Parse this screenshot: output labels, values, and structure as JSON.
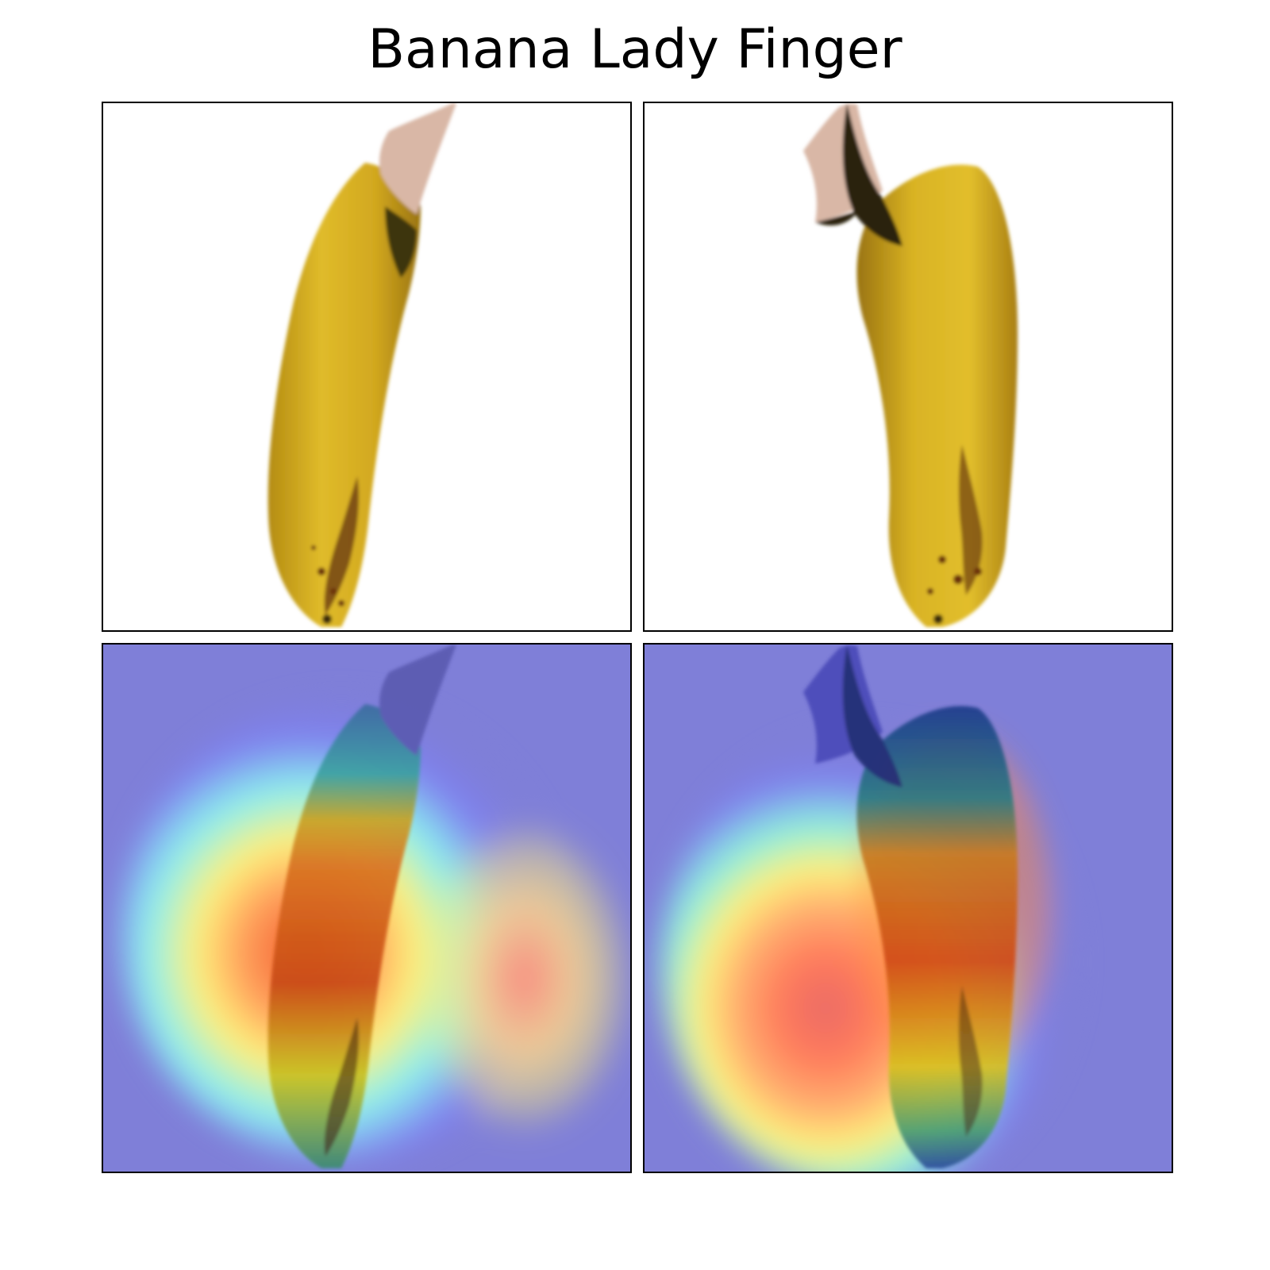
{
  "figure": {
    "title": "Banana Lady Finger"
  },
  "panels": [
    {
      "name": "original-image-1",
      "kind": "photo",
      "subject": "banana-icon"
    },
    {
      "name": "original-image-2",
      "kind": "photo",
      "subject": "banana-icon"
    },
    {
      "name": "heatmap-overlay-1",
      "kind": "attention-heatmap",
      "subject": "banana-icon"
    },
    {
      "name": "heatmap-overlay-2",
      "kind": "attention-heatmap",
      "subject": "banana-icon"
    }
  ],
  "colors": {
    "background": "#ffffff",
    "border": "#000000",
    "banana_yellow": "#d9b21e",
    "banana_dark": "#7a5a10",
    "stem_pink": "#d9b7a6",
    "heat_low": "#7f7fd8",
    "heat_mid": "#fff27a",
    "heat_high": "#f05a2a"
  }
}
